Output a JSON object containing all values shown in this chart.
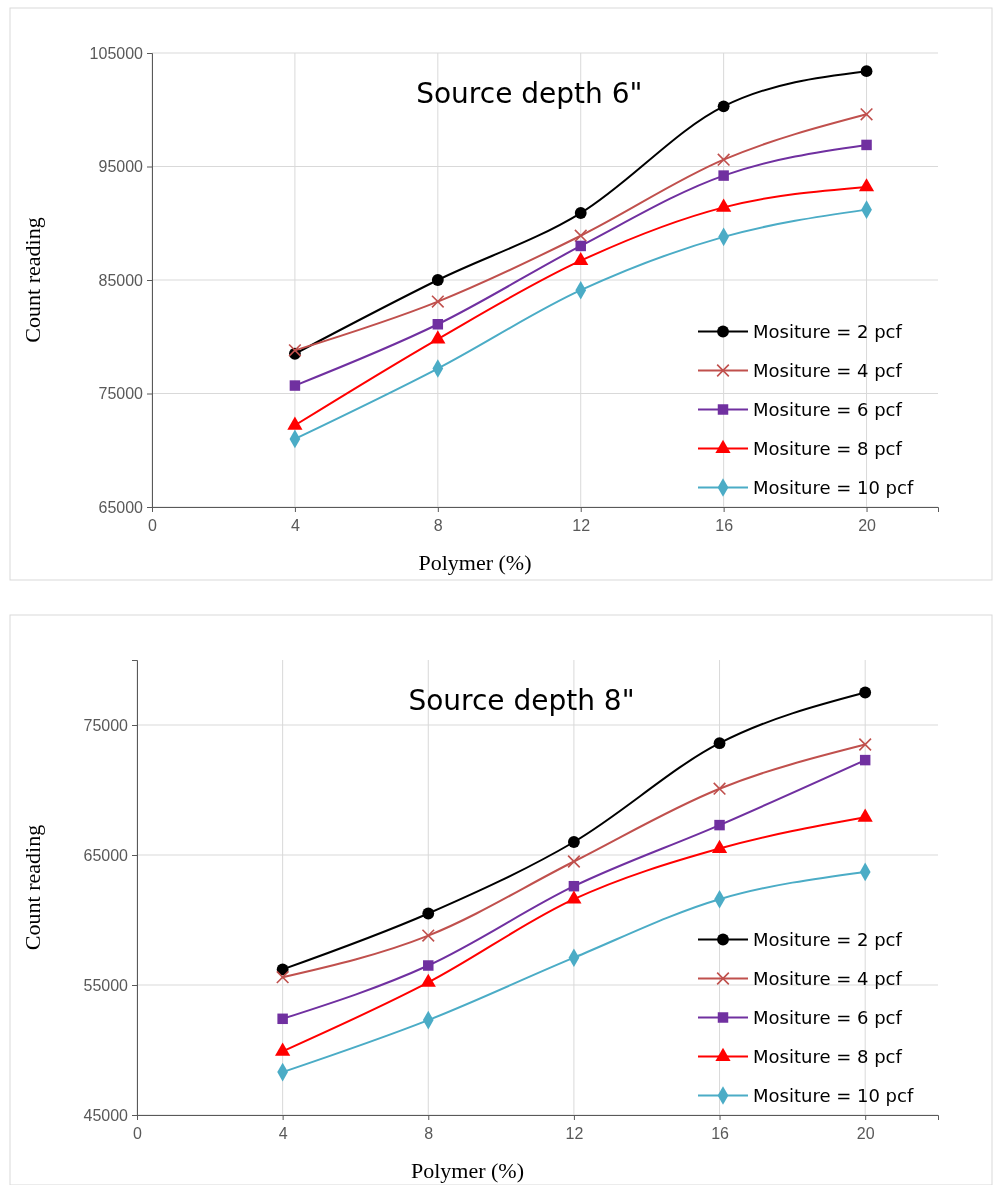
{
  "chart_data": [
    {
      "type": "line",
      "title": "Source depth 6\"",
      "xlabel": "Polymer (%)",
      "ylabel": "Count reading",
      "x": [
        4,
        8,
        12,
        16,
        20
      ],
      "xlim": [
        0,
        22
      ],
      "xticks": [
        0,
        4,
        8,
        12,
        16,
        20
      ],
      "ylim": [
        65000,
        105000
      ],
      "yticks": [
        65000,
        75000,
        85000,
        95000,
        105000
      ],
      "grid": true,
      "legend": "bottom right",
      "series": [
        {
          "name": "Mositure = 2 pcf",
          "color": "#000000",
          "marker": "circle",
          "values": [
            78500,
            85000,
            90900,
            100300,
            103400
          ]
        },
        {
          "name": "Mositure = 4 pcf",
          "color": "#c0504d",
          "marker": "cross",
          "values": [
            78800,
            83100,
            88900,
            95600,
            99600
          ]
        },
        {
          "name": "Mositure = 6 pcf",
          "color": "#7030a0",
          "marker": "square",
          "values": [
            75700,
            81100,
            88000,
            94200,
            96900
          ]
        },
        {
          "name": "Mositure = 8 pcf",
          "color": "#ff0000",
          "marker": "triangle",
          "values": [
            72200,
            79800,
            86700,
            91400,
            93200
          ]
        },
        {
          "name": "Mositure = 10 pcf",
          "color": "#4bacc6",
          "marker": "diamond",
          "values": [
            71000,
            77200,
            84100,
            88800,
            91200
          ]
        }
      ]
    },
    {
      "type": "line",
      "title": "Source depth 8\"",
      "xlabel": "Polymer (%)",
      "ylabel": "Count reading",
      "x": [
        4,
        8,
        12,
        16,
        20
      ],
      "xlim": [
        0,
        22
      ],
      "xticks": [
        0,
        4,
        8,
        12,
        16,
        20
      ],
      "ylim": [
        45000,
        80000
      ],
      "yticks": [
        45000,
        55000,
        65000,
        75000
      ],
      "grid": true,
      "legend": "bottom right",
      "series": [
        {
          "name": "Mositure = 2 pcf",
          "color": "#000000",
          "marker": "circle",
          "values": [
            56200,
            60500,
            66000,
            73600,
            77500
          ]
        },
        {
          "name": "Mositure = 4 pcf",
          "color": "#c0504d",
          "marker": "cross",
          "values": [
            55600,
            58800,
            64500,
            70100,
            73500
          ]
        },
        {
          "name": "Mositure = 6 pcf",
          "color": "#7030a0",
          "marker": "square",
          "values": [
            52400,
            56500,
            62600,
            67300,
            72300
          ]
        },
        {
          "name": "Mositure = 8 pcf",
          "color": "#ff0000",
          "marker": "triangle",
          "values": [
            49900,
            55200,
            61600,
            65500,
            67900
          ]
        },
        {
          "name": "Mositure = 10 pcf",
          "color": "#4bacc6",
          "marker": "diamond",
          "values": [
            48300,
            52300,
            57100,
            61600,
            63700
          ]
        }
      ]
    }
  ]
}
